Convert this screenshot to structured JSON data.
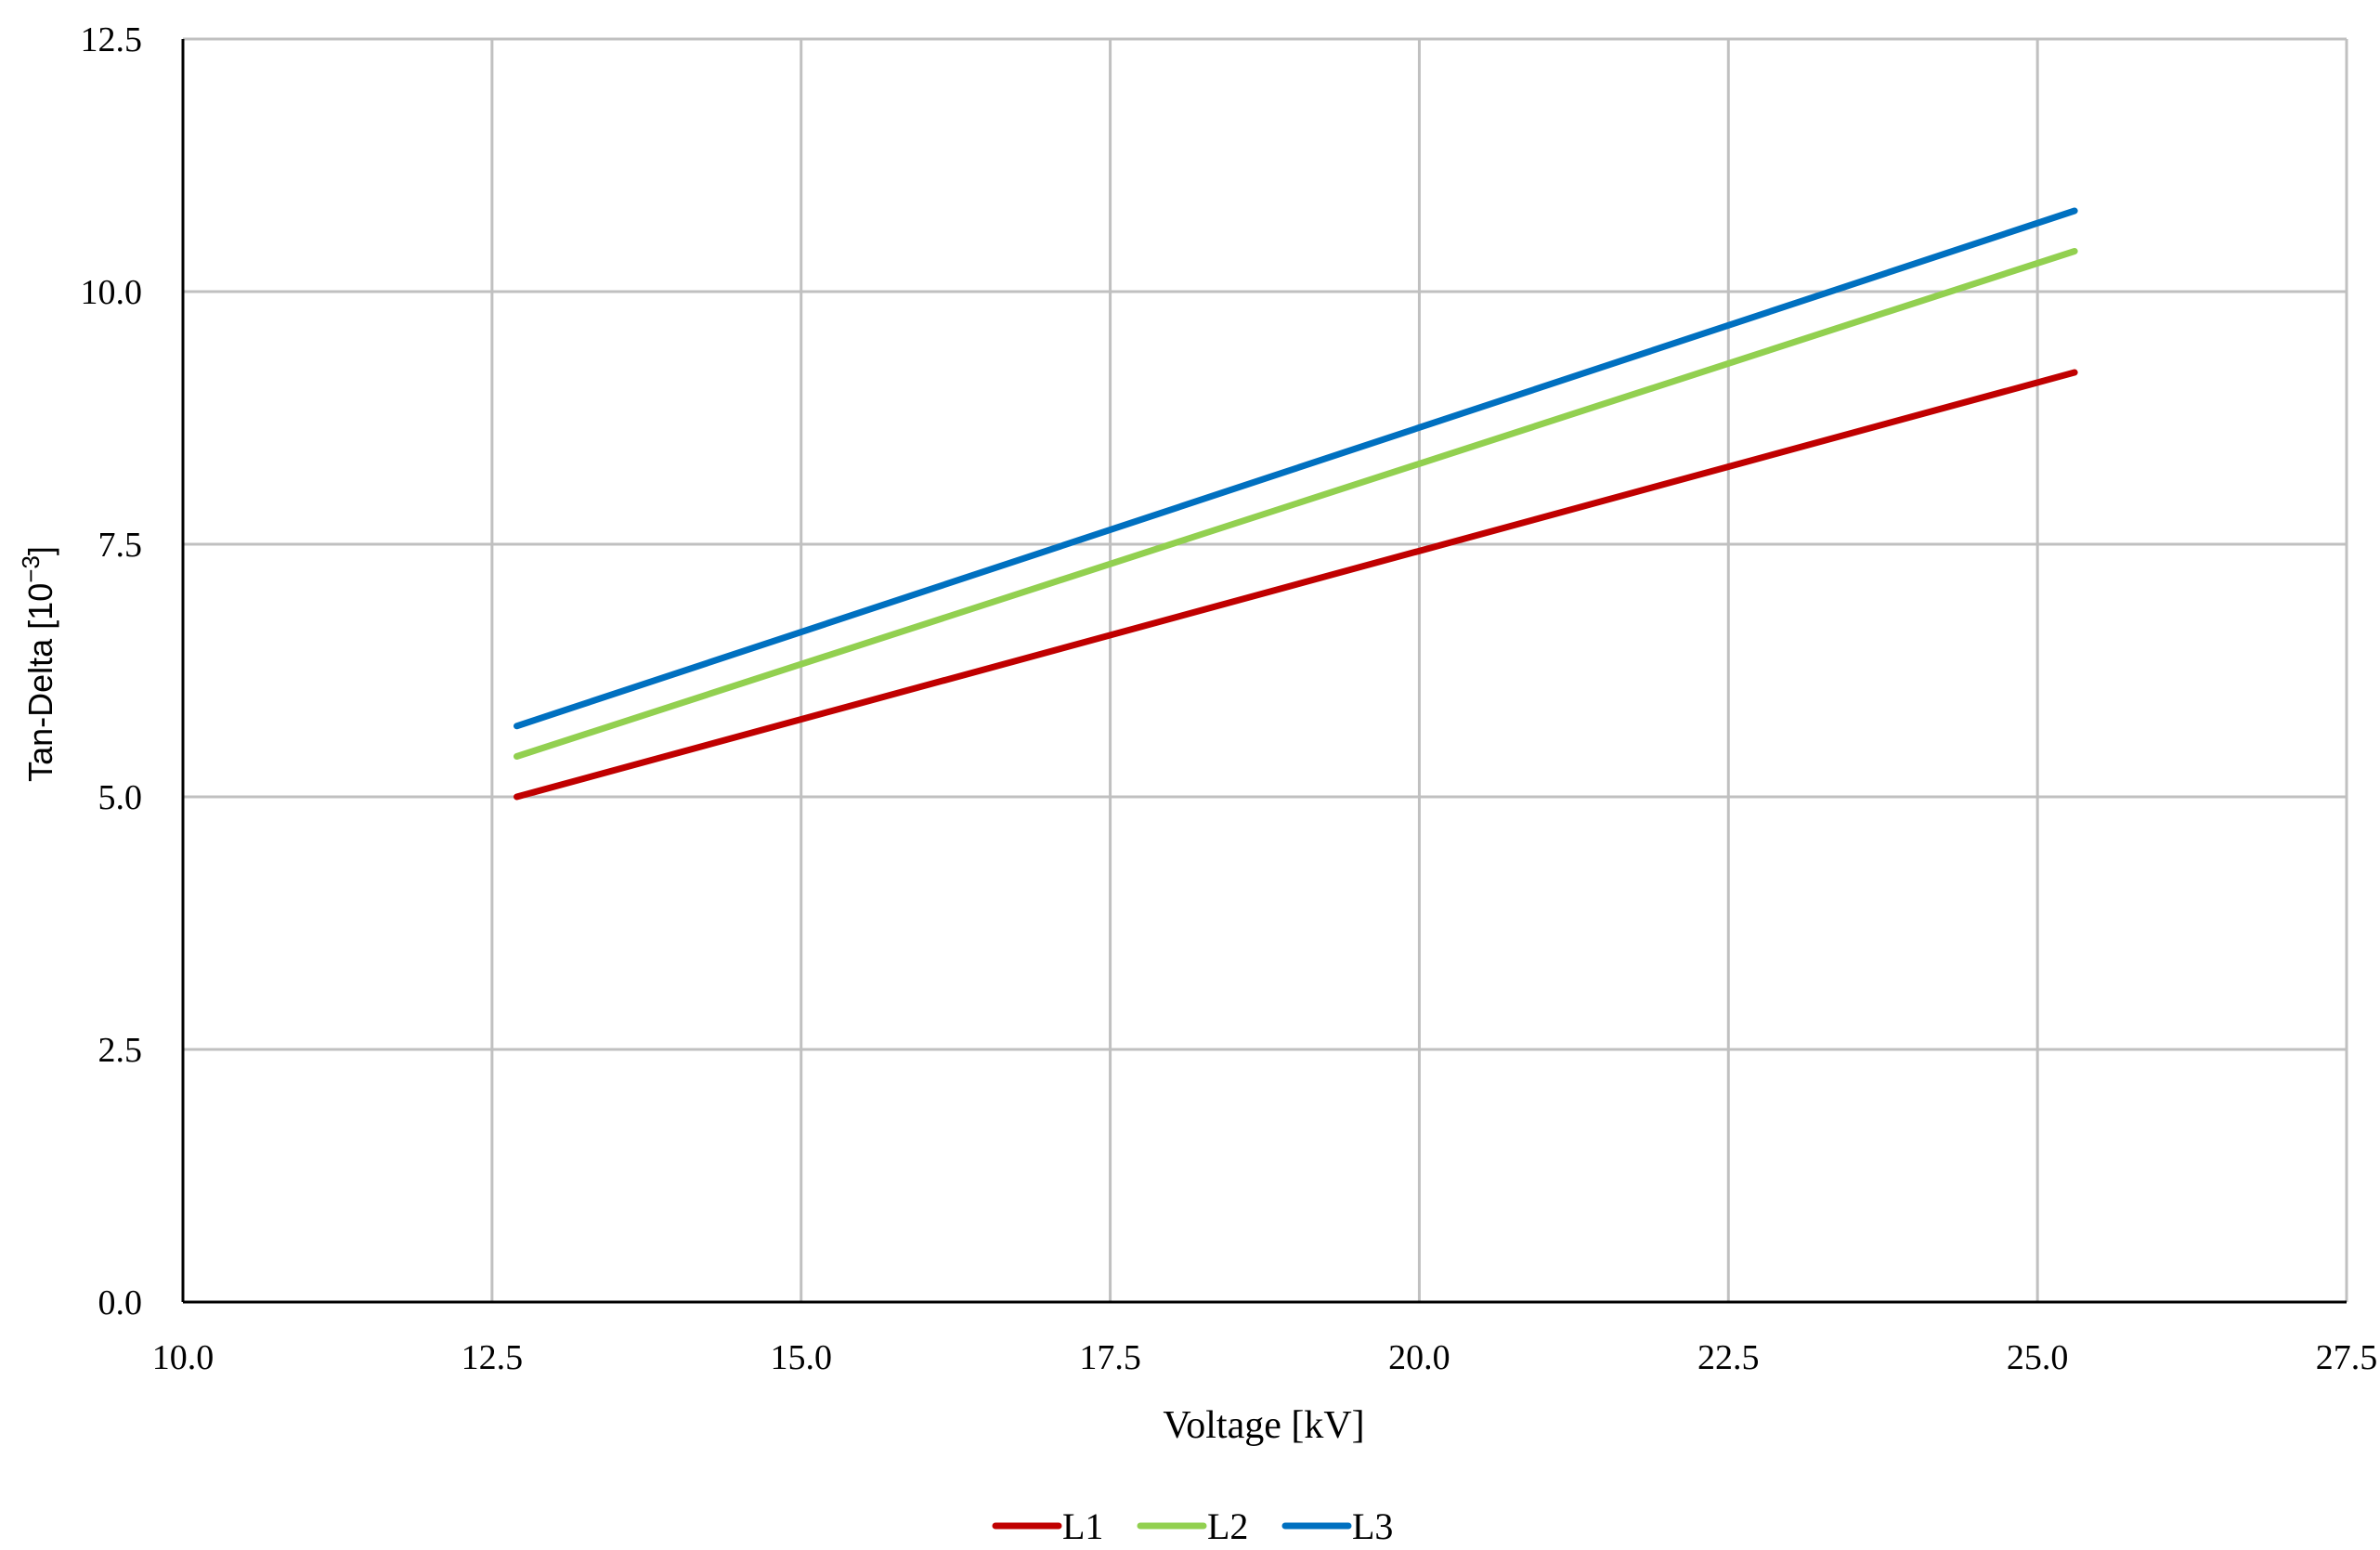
{
  "chart_data": {
    "type": "line",
    "title": "",
    "xlabel": "Voltage [kV]",
    "ylabel_main": "Tan-Delta [10",
    "ylabel_sup": "−3",
    "ylabel_close": "]",
    "xlim": [
      10.0,
      27.5
    ],
    "ylim": [
      0.0,
      12.5
    ],
    "x_ticks": [
      "10.0",
      "12.5",
      "15.0",
      "17.5",
      "20.0",
      "22.5",
      "25.0",
      "27.5"
    ],
    "y_ticks": [
      "0.0",
      "2.5",
      "5.0",
      "7.5",
      "10.0",
      "12.5"
    ],
    "grid": true,
    "legend_position": "bottom",
    "series": [
      {
        "name": "L1",
        "color": "#C00000",
        "x": [
          12.7,
          25.3
        ],
        "y": [
          5.0,
          9.2
        ]
      },
      {
        "name": "L2",
        "color": "#92D050",
        "x": [
          12.7,
          25.3
        ],
        "y": [
          5.4,
          10.4
        ]
      },
      {
        "name": "L3",
        "color": "#0070C0",
        "x": [
          12.7,
          25.3
        ],
        "y": [
          5.7,
          10.8
        ]
      }
    ]
  }
}
